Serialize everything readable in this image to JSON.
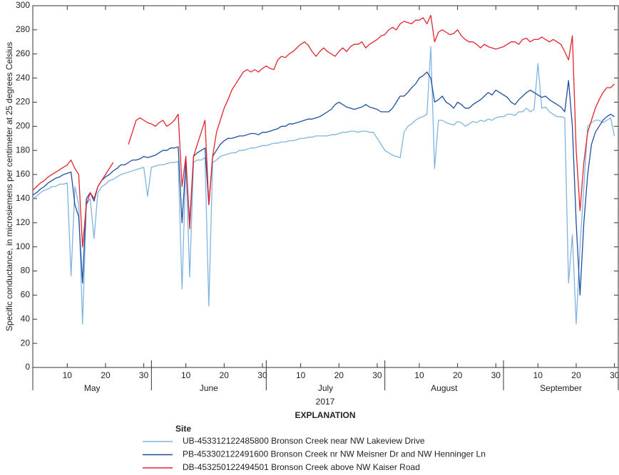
{
  "chart_data": {
    "type": "line",
    "y_label": "Specific conductance, in microsiemens per centimeter at 25 degrees Celsius",
    "x_label": "2017",
    "legend_title": "EXPLANATION",
    "legend_subtitle": "Site",
    "xlim": [
      "2017-05-01",
      "2017-10-01"
    ],
    "ylim": [
      0,
      300
    ],
    "yticks": [
      0,
      20,
      40,
      60,
      80,
      100,
      120,
      140,
      160,
      180,
      200,
      220,
      240,
      260,
      280,
      300
    ],
    "xticks": [
      {
        "value": "2017-05-10",
        "label": "10"
      },
      {
        "value": "2017-05-20",
        "label": "20"
      },
      {
        "value": "2017-05-30",
        "label": "30"
      },
      {
        "value": "2017-06-10",
        "label": "10"
      },
      {
        "value": "2017-06-20",
        "label": "20"
      },
      {
        "value": "2017-06-30",
        "label": "30"
      },
      {
        "value": "2017-07-10",
        "label": "10"
      },
      {
        "value": "2017-07-20",
        "label": "20"
      },
      {
        "value": "2017-07-30",
        "label": "30"
      },
      {
        "value": "2017-08-10",
        "label": "10"
      },
      {
        "value": "2017-08-20",
        "label": "20"
      },
      {
        "value": "2017-08-30",
        "label": "30"
      },
      {
        "value": "2017-09-10",
        "label": "10"
      },
      {
        "value": "2017-09-20",
        "label": "20"
      },
      {
        "value": "2017-09-30",
        "label": "30"
      }
    ],
    "month_ticks": [
      "2017-05-01",
      "2017-06-01",
      "2017-07-01",
      "2017-08-01",
      "2017-09-01",
      "2017-10-01"
    ],
    "month_labels": [
      "May",
      "June",
      "July",
      "August",
      "September"
    ],
    "x": [
      "2017-05-01",
      "2017-05-02",
      "2017-05-03",
      "2017-05-04",
      "2017-05-05",
      "2017-05-06",
      "2017-05-07",
      "2017-05-08",
      "2017-05-09",
      "2017-05-10",
      "2017-05-11",
      "2017-05-12",
      "2017-05-13",
      "2017-05-14",
      "2017-05-15",
      "2017-05-16",
      "2017-05-17",
      "2017-05-18",
      "2017-05-19",
      "2017-05-20",
      "2017-05-21",
      "2017-05-22",
      "2017-05-23",
      "2017-05-24",
      "2017-05-25",
      "2017-05-26",
      "2017-05-27",
      "2017-05-28",
      "2017-05-29",
      "2017-05-30",
      "2017-05-31",
      "2017-06-01",
      "2017-06-02",
      "2017-06-03",
      "2017-06-04",
      "2017-06-05",
      "2017-06-06",
      "2017-06-07",
      "2017-06-08",
      "2017-06-09",
      "2017-06-10",
      "2017-06-11",
      "2017-06-12",
      "2017-06-13",
      "2017-06-14",
      "2017-06-15",
      "2017-06-16",
      "2017-06-17",
      "2017-06-18",
      "2017-06-19",
      "2017-06-20",
      "2017-06-21",
      "2017-06-22",
      "2017-06-23",
      "2017-06-24",
      "2017-06-25",
      "2017-06-26",
      "2017-06-27",
      "2017-06-28",
      "2017-06-29",
      "2017-06-30",
      "2017-07-01",
      "2017-07-02",
      "2017-07-03",
      "2017-07-04",
      "2017-07-05",
      "2017-07-06",
      "2017-07-07",
      "2017-07-08",
      "2017-07-09",
      "2017-07-10",
      "2017-07-11",
      "2017-07-12",
      "2017-07-13",
      "2017-07-14",
      "2017-07-15",
      "2017-07-16",
      "2017-07-17",
      "2017-07-18",
      "2017-07-19",
      "2017-07-20",
      "2017-07-21",
      "2017-07-22",
      "2017-07-23",
      "2017-07-24",
      "2017-07-25",
      "2017-07-26",
      "2017-07-27",
      "2017-07-28",
      "2017-07-29",
      "2017-07-30",
      "2017-07-31",
      "2017-08-01",
      "2017-08-02",
      "2017-08-03",
      "2017-08-04",
      "2017-08-05",
      "2017-08-06",
      "2017-08-07",
      "2017-08-08",
      "2017-08-09",
      "2017-08-10",
      "2017-08-11",
      "2017-08-12",
      "2017-08-13",
      "2017-08-14",
      "2017-08-15",
      "2017-08-16",
      "2017-08-17",
      "2017-08-18",
      "2017-08-19",
      "2017-08-20",
      "2017-08-21",
      "2017-08-22",
      "2017-08-23",
      "2017-08-24",
      "2017-08-25",
      "2017-08-26",
      "2017-08-27",
      "2017-08-28",
      "2017-08-29",
      "2017-08-30",
      "2017-08-31",
      "2017-09-01",
      "2017-09-02",
      "2017-09-03",
      "2017-09-04",
      "2017-09-05",
      "2017-09-06",
      "2017-09-07",
      "2017-09-08",
      "2017-09-09",
      "2017-09-10",
      "2017-09-11",
      "2017-09-12",
      "2017-09-13",
      "2017-09-14",
      "2017-09-15",
      "2017-09-16",
      "2017-09-17",
      "2017-09-18",
      "2017-09-19",
      "2017-09-20",
      "2017-09-21",
      "2017-09-22",
      "2017-09-23",
      "2017-09-24",
      "2017-09-25",
      "2017-09-26",
      "2017-09-27",
      "2017-09-28",
      "2017-09-29",
      "2017-09-30"
    ],
    "series": [
      {
        "name": "UB-453312122485800 Bronson Creek near NW Lakeview Drive",
        "color": "#7fb4e2",
        "values": [
          140,
          142,
          145,
          147,
          148,
          150,
          150,
          152,
          152,
          153,
          76,
          150,
          135,
          36,
          135,
          140,
          107,
          145,
          150,
          152,
          155,
          156,
          158,
          160,
          161,
          162,
          163,
          164,
          165,
          166,
          142,
          166,
          167,
          168,
          168,
          169,
          170,
          170,
          171,
          65,
          170,
          75,
          170,
          172,
          172,
          174,
          51,
          170,
          172,
          175,
          176,
          177,
          178,
          178,
          180,
          180,
          181,
          182,
          182,
          183,
          184,
          184,
          185,
          186,
          186,
          187,
          187,
          188,
          188,
          189,
          190,
          190,
          191,
          191,
          192,
          192,
          192,
          192,
          193,
          193,
          194,
          195,
          195,
          196,
          196,
          195,
          196,
          196,
          195,
          195,
          190,
          185,
          180,
          178,
          176,
          175,
          174,
          195,
          200,
          202,
          205,
          207,
          208,
          210,
          266,
          165,
          205,
          205,
          203,
          202,
          201,
          204,
          203,
          200,
          202,
          204,
          203,
          205,
          204,
          206,
          205,
          207,
          208,
          208,
          210,
          210,
          209,
          212,
          212,
          215,
          212,
          214,
          252,
          215,
          216,
          212,
          210,
          208,
          208,
          207,
          70,
          110,
          36,
          100,
          150,
          200,
          203,
          205,
          205,
          203,
          205,
          207,
          192
        ]
      },
      {
        "name": "PB-453302122491600 Bronson Creek nr NW Meisner Dr and NW Henninger Ln",
        "color": "#1f4f9c",
        "values": [
          143,
          145,
          148,
          150,
          153,
          155,
          157,
          158,
          160,
          161,
          162,
          135,
          125,
          70,
          140,
          145,
          138,
          150,
          155,
          158,
          160,
          163,
          165,
          168,
          168,
          170,
          172,
          172,
          173,
          175,
          174,
          175,
          176,
          178,
          180,
          180,
          182,
          182,
          183,
          120,
          170,
          120,
          175,
          178,
          180,
          182,
          135,
          175,
          180,
          185,
          188,
          190,
          190,
          191,
          192,
          192,
          193,
          194,
          194,
          193,
          195,
          195,
          196,
          197,
          198,
          200,
          200,
          202,
          202,
          203,
          204,
          205,
          206,
          206,
          207,
          208,
          210,
          212,
          214,
          218,
          220,
          218,
          216,
          215,
          214,
          215,
          216,
          218,
          216,
          215,
          214,
          212,
          212,
          212,
          215,
          220,
          225,
          225,
          228,
          232,
          235,
          240,
          242,
          245,
          240,
          220,
          222,
          225,
          220,
          218,
          215,
          220,
          218,
          215,
          215,
          218,
          220,
          222,
          225,
          228,
          226,
          230,
          228,
          226,
          224,
          220,
          218,
          222,
          225,
          228,
          230,
          228,
          226,
          224,
          225,
          222,
          220,
          218,
          216,
          212,
          238,
          200,
          120,
          60,
          120,
          160,
          185,
          195,
          200,
          205,
          208,
          210,
          208
        ]
      },
      {
        "name": "DB-453250122494501 Bronson Creek above NW Kaiser Road",
        "color": "#e3242b",
        "values": [
          147,
          150,
          153,
          155,
          158,
          160,
          162,
          164,
          166,
          168,
          172,
          165,
          160,
          100,
          135,
          145,
          140,
          150,
          155,
          160,
          165,
          170,
          null,
          null,
          null,
          185,
          195,
          205,
          207,
          205,
          203,
          202,
          200,
          203,
          205,
          200,
          202,
          205,
          210,
          150,
          175,
          115,
          175,
          185,
          195,
          205,
          135,
          175,
          195,
          205,
          215,
          222,
          230,
          235,
          240,
          245,
          247,
          245,
          247,
          245,
          248,
          250,
          248,
          247,
          255,
          258,
          257,
          260,
          262,
          265,
          268,
          270,
          267,
          262,
          258,
          262,
          265,
          262,
          260,
          258,
          262,
          265,
          262,
          266,
          268,
          268,
          270,
          265,
          268,
          270,
          272,
          275,
          276,
          280,
          282,
          280,
          285,
          287,
          286,
          285,
          288,
          288,
          290,
          285,
          292,
          270,
          278,
          280,
          278,
          276,
          277,
          280,
          275,
          272,
          270,
          270,
          268,
          265,
          268,
          266,
          265,
          264,
          265,
          266,
          268,
          270,
          270,
          268,
          272,
          273,
          270,
          272,
          272,
          274,
          272,
          270,
          272,
          270,
          268,
          262,
          255,
          275,
          180,
          130,
          170,
          195,
          205,
          215,
          222,
          228,
          232,
          232,
          235
        ]
      }
    ]
  }
}
